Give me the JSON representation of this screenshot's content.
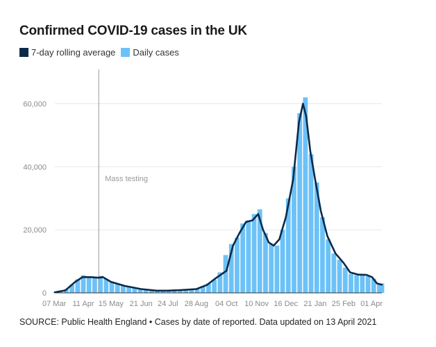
{
  "title": "Confirmed COVID-19 cases in the UK",
  "source": "SOURCE: Public Health England • Cases by date of reported. Data updated on 13 April 2021",
  "legend": [
    {
      "label": "7-day rolling average",
      "color": "#0b2a4a"
    },
    {
      "label": "Daily cases",
      "color": "#6cc2f7"
    }
  ],
  "annotation": {
    "label": "Mass testing",
    "x": "2020-04-30"
  },
  "chart_data": {
    "type": "bar",
    "title": "Confirmed COVID-19 cases in the UK",
    "xlabel": "",
    "ylabel": "",
    "x_range": [
      "2020-03-07",
      "2021-04-13"
    ],
    "ylim": [
      0,
      70000
    ],
    "y_ticks": [
      0,
      20000,
      40000,
      60000
    ],
    "y_tick_labels": [
      "0",
      "20,000",
      "40,000",
      "60,000"
    ],
    "x_ticks": [
      "2020-03-07",
      "2020-04-11",
      "2020-05-15",
      "2020-06-21",
      "2020-07-24",
      "2020-08-28",
      "2020-10-04",
      "2020-11-10",
      "2020-12-16",
      "2021-01-21",
      "2021-02-25",
      "2021-04-01"
    ],
    "x_tick_labels": [
      "07 Mar",
      "11 Apr",
      "15 May",
      "21 Jun",
      "24 Jul",
      "28 Aug",
      "04 Oct",
      "10 Nov",
      "16 Dec",
      "21 Jan",
      "25 Feb",
      "01 Apr"
    ],
    "grid": true,
    "legend_position": "top-left",
    "series": [
      {
        "name": "7-day rolling average",
        "kind": "line",
        "color": "#0b2a4a",
        "points": [
          [
            "2020-03-07",
            200
          ],
          [
            "2020-03-20",
            800
          ],
          [
            "2020-04-01",
            3500
          ],
          [
            "2020-04-10",
            5000
          ],
          [
            "2020-04-20",
            5000
          ],
          [
            "2020-04-30",
            4800
          ],
          [
            "2020-05-05",
            5000
          ],
          [
            "2020-05-15",
            3500
          ],
          [
            "2020-06-01",
            2200
          ],
          [
            "2020-06-21",
            1200
          ],
          [
            "2020-07-10",
            700
          ],
          [
            "2020-07-24",
            700
          ],
          [
            "2020-08-10",
            900
          ],
          [
            "2020-08-28",
            1200
          ],
          [
            "2020-09-10",
            2500
          ],
          [
            "2020-09-20",
            4500
          ],
          [
            "2020-10-04",
            7000
          ],
          [
            "2020-10-12",
            15000
          ],
          [
            "2020-10-20",
            19000
          ],
          [
            "2020-10-28",
            22500
          ],
          [
            "2020-11-05",
            23000
          ],
          [
            "2020-11-12",
            25000
          ],
          [
            "2020-11-18",
            20000
          ],
          [
            "2020-11-25",
            16000
          ],
          [
            "2020-12-01",
            15000
          ],
          [
            "2020-12-08",
            17000
          ],
          [
            "2020-12-16",
            24000
          ],
          [
            "2020-12-25",
            36000
          ],
          [
            "2021-01-01",
            54000
          ],
          [
            "2021-01-06",
            60000
          ],
          [
            "2021-01-10",
            56000
          ],
          [
            "2021-01-15",
            45000
          ],
          [
            "2021-01-21",
            36000
          ],
          [
            "2021-01-28",
            26000
          ],
          [
            "2021-02-05",
            18000
          ],
          [
            "2021-02-15",
            12500
          ],
          [
            "2021-02-25",
            9500
          ],
          [
            "2021-03-05",
            6500
          ],
          [
            "2021-03-15",
            5800
          ],
          [
            "2021-03-25",
            5700
          ],
          [
            "2021-04-01",
            5000
          ],
          [
            "2021-04-07",
            3000
          ],
          [
            "2021-04-13",
            2600
          ]
        ]
      },
      {
        "name": "Daily cases",
        "kind": "bar",
        "color": "#6cc2f7",
        "points": [
          [
            "2020-03-07",
            150
          ],
          [
            "2020-03-14",
            400
          ],
          [
            "2020-03-21",
            1100
          ],
          [
            "2020-03-28",
            2600
          ],
          [
            "2020-04-04",
            4300
          ],
          [
            "2020-04-11",
            5600
          ],
          [
            "2020-04-18",
            5200
          ],
          [
            "2020-04-25",
            4900
          ],
          [
            "2020-05-02",
            5400
          ],
          [
            "2020-05-09",
            4400
          ],
          [
            "2020-05-16",
            3500
          ],
          [
            "2020-05-23",
            2800
          ],
          [
            "2020-05-30",
            2300
          ],
          [
            "2020-06-06",
            1900
          ],
          [
            "2020-06-13",
            1500
          ],
          [
            "2020-06-20",
            1200
          ],
          [
            "2020-06-27",
            1000
          ],
          [
            "2020-07-04",
            850
          ],
          [
            "2020-07-11",
            700
          ],
          [
            "2020-07-18",
            700
          ],
          [
            "2020-07-25",
            720
          ],
          [
            "2020-08-01",
            800
          ],
          [
            "2020-08-08",
            900
          ],
          [
            "2020-08-15",
            1000
          ],
          [
            "2020-08-22",
            1100
          ],
          [
            "2020-08-29",
            1300
          ],
          [
            "2020-09-05",
            2000
          ],
          [
            "2020-09-12",
            3000
          ],
          [
            "2020-09-19",
            4200
          ],
          [
            "2020-09-26",
            6500
          ],
          [
            "2020-10-03",
            12000
          ],
          [
            "2020-10-10",
            15500
          ],
          [
            "2020-10-17",
            17500
          ],
          [
            "2020-10-24",
            22000
          ],
          [
            "2020-10-31",
            23000
          ],
          [
            "2020-11-07",
            25000
          ],
          [
            "2020-11-14",
            26500
          ],
          [
            "2020-11-21",
            19000
          ],
          [
            "2020-11-28",
            15500
          ],
          [
            "2020-12-05",
            15000
          ],
          [
            "2020-12-12",
            20000
          ],
          [
            "2020-12-19",
            30000
          ],
          [
            "2020-12-26",
            40000
          ],
          [
            "2021-01-02",
            57000
          ],
          [
            "2021-01-09",
            62000
          ],
          [
            "2021-01-16",
            44000
          ],
          [
            "2021-01-23",
            35000
          ],
          [
            "2021-01-30",
            24000
          ],
          [
            "2021-02-06",
            17000
          ],
          [
            "2021-02-13",
            12500
          ],
          [
            "2021-02-20",
            10500
          ],
          [
            "2021-02-27",
            8000
          ],
          [
            "2021-03-06",
            6000
          ],
          [
            "2021-03-13",
            5600
          ],
          [
            "2021-03-20",
            5500
          ],
          [
            "2021-03-27",
            5300
          ],
          [
            "2021-04-03",
            4500
          ],
          [
            "2021-04-10",
            2800
          ],
          [
            "2021-04-13",
            3000
          ]
        ]
      }
    ]
  }
}
